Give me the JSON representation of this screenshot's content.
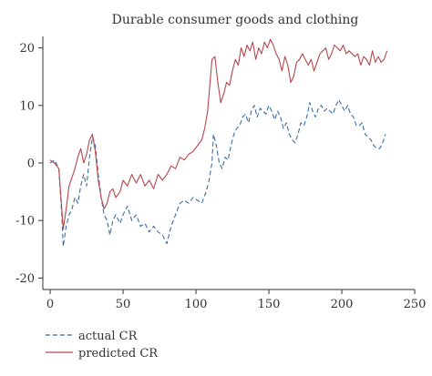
{
  "chart_data": {
    "type": "line",
    "title": "Durable consumer goods and clothing",
    "xlabel": "",
    "ylabel": "",
    "xlim": [
      -5,
      250
    ],
    "ylim": [
      -22,
      22
    ],
    "xticks": [
      0,
      50,
      100,
      150,
      200,
      250
    ],
    "yticks": [
      -20,
      -10,
      0,
      10,
      20
    ],
    "grid": false,
    "legend": "bottom-left",
    "series": [
      {
        "name": "actual CR",
        "color": "#3a6ea5",
        "dash": "dashed",
        "points": [
          [
            0,
            0
          ],
          [
            3,
            0.5
          ],
          [
            6,
            -1
          ],
          [
            8,
            -9
          ],
          [
            9,
            -14.5
          ],
          [
            11,
            -11
          ],
          [
            13,
            -9
          ],
          [
            15,
            -8
          ],
          [
            17,
            -6
          ],
          [
            19,
            -7
          ],
          [
            21,
            -4
          ],
          [
            23,
            -2
          ],
          [
            25,
            -4
          ],
          [
            27,
            1
          ],
          [
            29,
            4.5
          ],
          [
            31,
            3
          ],
          [
            33,
            -2
          ],
          [
            35,
            -6
          ],
          [
            37,
            -9
          ],
          [
            39,
            -10
          ],
          [
            41,
            -12.5
          ],
          [
            43,
            -10
          ],
          [
            45,
            -9
          ],
          [
            48,
            -10.5
          ],
          [
            50,
            -9
          ],
          [
            53,
            -7.5
          ],
          [
            56,
            -10
          ],
          [
            59,
            -9
          ],
          [
            62,
            -11
          ],
          [
            65,
            -10.5
          ],
          [
            68,
            -12
          ],
          [
            71,
            -11
          ],
          [
            74,
            -12
          ],
          [
            77,
            -12.5
          ],
          [
            80,
            -14
          ],
          [
            83,
            -11
          ],
          [
            86,
            -9
          ],
          [
            89,
            -7
          ],
          [
            92,
            -6.5
          ],
          [
            95,
            -7
          ],
          [
            98,
            -6
          ],
          [
            101,
            -6.5
          ],
          [
            104,
            -7
          ],
          [
            107,
            -5
          ],
          [
            109,
            -3
          ],
          [
            111,
            0
          ],
          [
            112,
            5
          ],
          [
            114,
            3
          ],
          [
            116,
            0
          ],
          [
            118,
            -1
          ],
          [
            120,
            1
          ],
          [
            122,
            0.5
          ],
          [
            124,
            3
          ],
          [
            126,
            5
          ],
          [
            128,
            6
          ],
          [
            130,
            6.5
          ],
          [
            132,
            8
          ],
          [
            134,
            8.5
          ],
          [
            136,
            7
          ],
          [
            138,
            9
          ],
          [
            140,
            10
          ],
          [
            142,
            8
          ],
          [
            144,
            9.5
          ],
          [
            146,
            9
          ],
          [
            148,
            8.5
          ],
          [
            150,
            10
          ],
          [
            152,
            9
          ],
          [
            154,
            7.5
          ],
          [
            156,
            9
          ],
          [
            158,
            8
          ],
          [
            160,
            6
          ],
          [
            162,
            7
          ],
          [
            164,
            5
          ],
          [
            166,
            4
          ],
          [
            168,
            3.5
          ],
          [
            170,
            5
          ],
          [
            172,
            7
          ],
          [
            174,
            6.5
          ],
          [
            176,
            8
          ],
          [
            178,
            10.5
          ],
          [
            180,
            9
          ],
          [
            182,
            8
          ],
          [
            184,
            9.5
          ],
          [
            186,
            10
          ],
          [
            188,
            9
          ],
          [
            190,
            9.5
          ],
          [
            192,
            9
          ],
          [
            194,
            8.5
          ],
          [
            196,
            10
          ],
          [
            198,
            11
          ],
          [
            200,
            10
          ],
          [
            202,
            9
          ],
          [
            204,
            10
          ],
          [
            206,
            8.5
          ],
          [
            208,
            8
          ],
          [
            210,
            6.5
          ],
          [
            212,
            6.5
          ],
          [
            214,
            7
          ],
          [
            216,
            5
          ],
          [
            218,
            4.5
          ],
          [
            220,
            4
          ],
          [
            222,
            3
          ],
          [
            224,
            2.5
          ],
          [
            226,
            2.5
          ],
          [
            228,
            3.5
          ],
          [
            230,
            5
          ]
        ]
      },
      {
        "name": "predicted CR",
        "color": "#b5474c",
        "dash": "solid",
        "points": [
          [
            0,
            0.5
          ],
          [
            3,
            0
          ],
          [
            6,
            -1
          ],
          [
            8,
            -8
          ],
          [
            9,
            -11.5
          ],
          [
            11,
            -8
          ],
          [
            13,
            -4
          ],
          [
            15,
            -2.5
          ],
          [
            17,
            -1
          ],
          [
            19,
            1
          ],
          [
            21,
            2.5
          ],
          [
            23,
            0
          ],
          [
            25,
            1.5
          ],
          [
            27,
            4
          ],
          [
            29,
            5
          ],
          [
            31,
            2
          ],
          [
            33,
            -3
          ],
          [
            35,
            -6
          ],
          [
            37,
            -8
          ],
          [
            39,
            -7
          ],
          [
            41,
            -5
          ],
          [
            43,
            -4.5
          ],
          [
            45,
            -6
          ],
          [
            48,
            -5
          ],
          [
            50,
            -3
          ],
          [
            53,
            -4
          ],
          [
            56,
            -2
          ],
          [
            59,
            -3.5
          ],
          [
            62,
            -2
          ],
          [
            65,
            -4
          ],
          [
            68,
            -3
          ],
          [
            71,
            -4.5
          ],
          [
            74,
            -2
          ],
          [
            77,
            -3
          ],
          [
            80,
            -2
          ],
          [
            83,
            -0.5
          ],
          [
            86,
            -1
          ],
          [
            89,
            1
          ],
          [
            92,
            0.5
          ],
          [
            95,
            1.5
          ],
          [
            98,
            2
          ],
          [
            101,
            3
          ],
          [
            104,
            4
          ],
          [
            106,
            6
          ],
          [
            108,
            9
          ],
          [
            110,
            15
          ],
          [
            111,
            18
          ],
          [
            113,
            18.5
          ],
          [
            115,
            14
          ],
          [
            117,
            10.5
          ],
          [
            119,
            12
          ],
          [
            121,
            14
          ],
          [
            123,
            13.5
          ],
          [
            125,
            16
          ],
          [
            127,
            18
          ],
          [
            129,
            17
          ],
          [
            131,
            20
          ],
          [
            133,
            18.5
          ],
          [
            135,
            20.5
          ],
          [
            137,
            19.5
          ],
          [
            139,
            21
          ],
          [
            141,
            18
          ],
          [
            143,
            20
          ],
          [
            145,
            19
          ],
          [
            147,
            21
          ],
          [
            149,
            20
          ],
          [
            151,
            21.5
          ],
          [
            153,
            20.5
          ],
          [
            155,
            19
          ],
          [
            157,
            18
          ],
          [
            159,
            16
          ],
          [
            161,
            18.5
          ],
          [
            163,
            17
          ],
          [
            165,
            14
          ],
          [
            167,
            15
          ],
          [
            169,
            17.5
          ],
          [
            171,
            18
          ],
          [
            173,
            19
          ],
          [
            175,
            18
          ],
          [
            177,
            17
          ],
          [
            179,
            18
          ],
          [
            181,
            16
          ],
          [
            183,
            17.5
          ],
          [
            185,
            19
          ],
          [
            187,
            19.5
          ],
          [
            189,
            20
          ],
          [
            191,
            18
          ],
          [
            193,
            19
          ],
          [
            195,
            20.5
          ],
          [
            197,
            20
          ],
          [
            199,
            19.5
          ],
          [
            201,
            20.5
          ],
          [
            203,
            19
          ],
          [
            205,
            19.5
          ],
          [
            207,
            19
          ],
          [
            209,
            18.5
          ],
          [
            211,
            19
          ],
          [
            213,
            17
          ],
          [
            215,
            18.5
          ],
          [
            217,
            18
          ],
          [
            219,
            17
          ],
          [
            221,
            19.5
          ],
          [
            223,
            17.5
          ],
          [
            225,
            18.5
          ],
          [
            227,
            17.5
          ],
          [
            229,
            18
          ],
          [
            231,
            19.5
          ]
        ]
      }
    ]
  }
}
